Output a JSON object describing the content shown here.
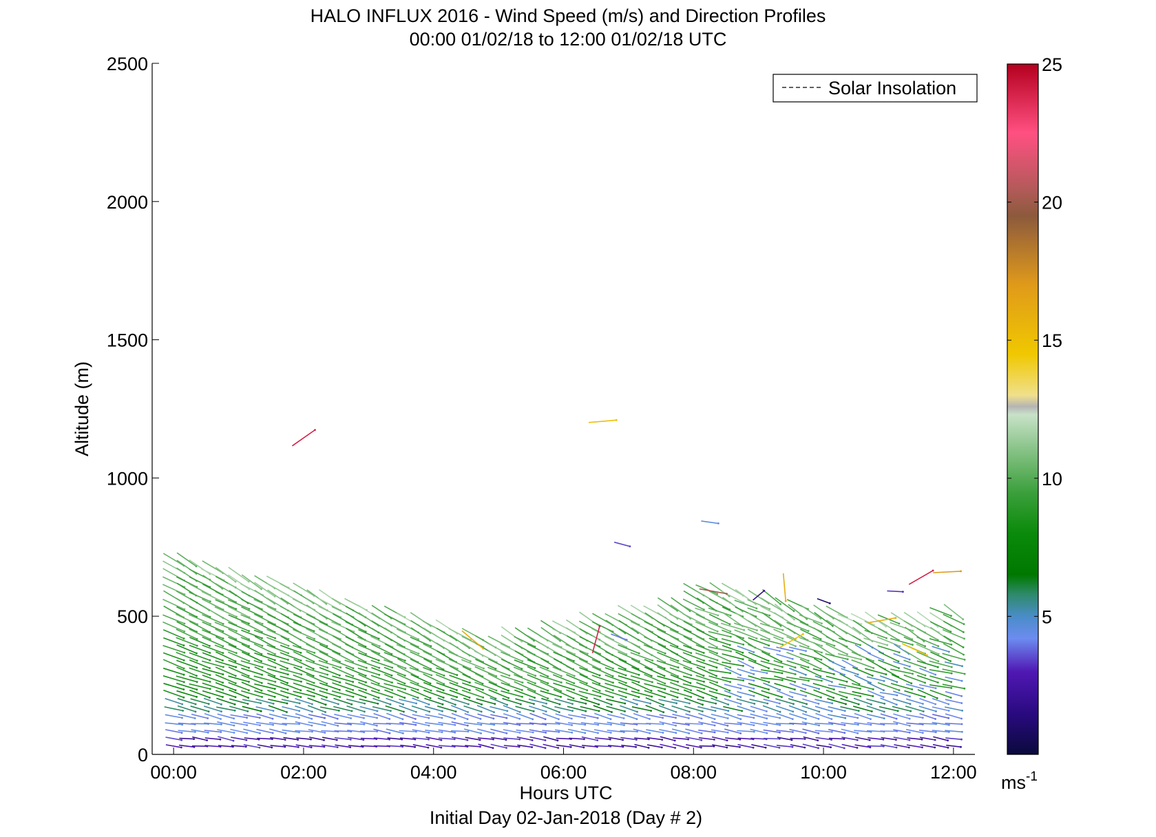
{
  "chart_data": {
    "type": "quiver",
    "title": "HALO INFLUX 2016 - Wind Speed (m/s) and Direction Profiles",
    "subtitle": "00:00 01/02/18 to 12:00 01/02/18  UTC",
    "xlabel": "Hours UTC",
    "xlabel2": "Initial Day 02-Jan-2018 (Day # 2)",
    "ylabel": "Altitude (m)",
    "xlim": [
      -0.33,
      12.33
    ],
    "ylim": [
      0,
      2500
    ],
    "x_ticks": [
      0,
      2,
      4,
      6,
      8,
      10,
      12
    ],
    "x_tick_labels": [
      "00:00",
      "02:00",
      "04:00",
      "06:00",
      "08:00",
      "10:00",
      "12:00"
    ],
    "y_ticks": [
      0,
      500,
      1000,
      1500,
      2000,
      2500
    ],
    "y_tick_labels": [
      "0",
      "500",
      "1000",
      "1500",
      "2000",
      "2500"
    ],
    "legend": {
      "entries": [
        "Solar Insolation"
      ],
      "placement": "top-right",
      "line_style": "dashed"
    },
    "colorbar": {
      "range": [
        0,
        25
      ],
      "ticks": [
        5,
        10,
        15,
        20,
        25
      ],
      "tick_labels": [
        "5",
        "10",
        "15",
        "20",
        "25"
      ],
      "unit_label": "ms",
      "unit_exponent": "-1",
      "stops": [
        {
          "v": 0,
          "c": "#0a0a3c"
        },
        {
          "v": 1.5,
          "c": "#2a0a80"
        },
        {
          "v": 3,
          "c": "#5018b4"
        },
        {
          "v": 4.2,
          "c": "#6c8cf0"
        },
        {
          "v": 5,
          "c": "#4a8cc8"
        },
        {
          "v": 5.8,
          "c": "#2e8a6a"
        },
        {
          "v": 6.5,
          "c": "#007800"
        },
        {
          "v": 8,
          "c": "#0a8a0a"
        },
        {
          "v": 9.5,
          "c": "#3ca03c"
        },
        {
          "v": 11,
          "c": "#86c286"
        },
        {
          "v": 12.3,
          "c": "#c8e2c8"
        },
        {
          "v": 12.6,
          "c": "#b4b4b4"
        },
        {
          "v": 13,
          "c": "#f0e08c"
        },
        {
          "v": 14.5,
          "c": "#f0c800"
        },
        {
          "v": 17,
          "c": "#e09a1a"
        },
        {
          "v": 19.5,
          "c": "#8c5a3c"
        },
        {
          "v": 20.5,
          "c": "#b45a5a"
        },
        {
          "v": 22.5,
          "c": "#ff5082"
        },
        {
          "v": 25,
          "c": "#b4001e"
        }
      ]
    },
    "profiles": {
      "time_step_hours": 0.2,
      "num_times": 61,
      "base_altitude_m": 30,
      "altitude_step_m": 27,
      "note_speed_model": "speed increases with altitude up to boundary layer top (~500-700 m); direction mostly from northwest"
    },
    "isolated_vectors": [
      {
        "t": 2.0,
        "alt": 1145,
        "speed": 24,
        "dir_deg": 35
      },
      {
        "t": 6.6,
        "alt": 1205,
        "speed": 15,
        "dir_deg": 5
      },
      {
        "t": 6.5,
        "alt": 415,
        "speed": 24,
        "dir_deg": 75
      },
      {
        "t": 6.85,
        "alt": 425,
        "speed": 4,
        "dir_deg": -20
      },
      {
        "t": 8.25,
        "alt": 840,
        "speed": 4.5,
        "dir_deg": -8
      },
      {
        "t": 8.3,
        "alt": 590,
        "speed": 20,
        "dir_deg": -10
      },
      {
        "t": 9.4,
        "alt": 605,
        "speed": 16,
        "dir_deg": -85
      },
      {
        "t": 9.5,
        "alt": 410,
        "speed": 15,
        "dir_deg": 30
      },
      {
        "t": 10.0,
        "alt": 555,
        "speed": 1,
        "dir_deg": -20
      },
      {
        "t": 11.5,
        "alt": 640,
        "speed": 24,
        "dir_deg": 30
      },
      {
        "t": 11.9,
        "alt": 660,
        "speed": 17,
        "dir_deg": 3
      },
      {
        "t": 10.9,
        "alt": 485,
        "speed": 16,
        "dir_deg": 10
      },
      {
        "t": 11.4,
        "alt": 380,
        "speed": 15,
        "dir_deg": -25
      },
      {
        "t": 4.6,
        "alt": 415,
        "speed": 16,
        "dir_deg": -40
      },
      {
        "t": 6.9,
        "alt": 760,
        "speed": 3.5,
        "dir_deg": -15
      },
      {
        "t": 9.0,
        "alt": 575,
        "speed": 2,
        "dir_deg": 40
      },
      {
        "t": 11.1,
        "alt": 590,
        "speed": 3.2,
        "dir_deg": -3
      }
    ]
  }
}
